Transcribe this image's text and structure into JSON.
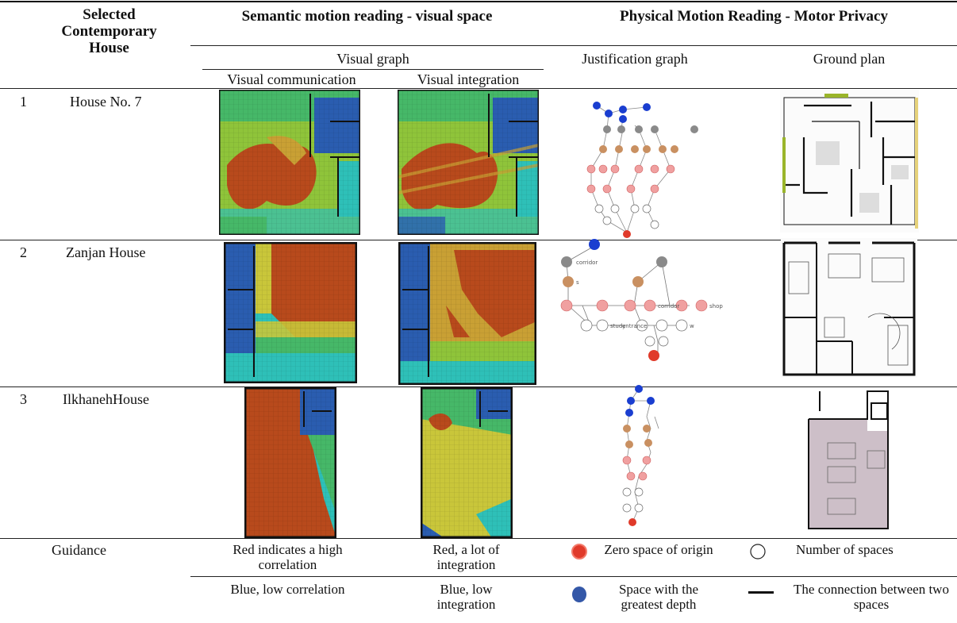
{
  "header": {
    "col_house": "Selected Contemporary House",
    "col_semantic": "Semantic motion reading - visual space",
    "col_physical": "Physical Motion Reading - Motor Privacy",
    "visual_graph": "Visual graph",
    "justification_graph": "Justification graph",
    "ground_plan": "Ground plan",
    "visual_communication": "Visual communication",
    "visual_integration": "Visual integration"
  },
  "rows": [
    {
      "num": "1",
      "name": "House No. 7"
    },
    {
      "num": "2",
      "name": "Zanjan House"
    },
    {
      "num": "3",
      "name": "IlkhanehHouse"
    }
  ],
  "graph_labels": {
    "corridor": "corridor",
    "study": "study",
    "entrance": "entrance",
    "shop": "shop",
    "w": "w",
    "s": "s"
  },
  "guidance": {
    "label": "Guidance",
    "red_high_correlation": "Red indicates a high correlation",
    "red_integration": "Red, a lot of integration",
    "zero_space": "Zero space of origin",
    "number_spaces": "Number of spaces",
    "blue_low_correlation": "Blue, low correlation",
    "blue_low_integration": "Blue, low integration",
    "greatest_depth": "Space with the greatest depth",
    "connection": "The connection between two spaces"
  },
  "colors": {
    "red_high": "#b84a1c",
    "yellow": "#c9c63a",
    "green": "#3fb86a",
    "cyan": "#2ec0b8",
    "blue_low": "#2a5db0",
    "node_red": "#e03a2a",
    "node_blue": "#1a3ed0",
    "node_pink": "#f0a0a0",
    "node_brown": "#c99061",
    "node_gray": "#8a8a8a",
    "plan_lilac": "#cdbfc8"
  }
}
